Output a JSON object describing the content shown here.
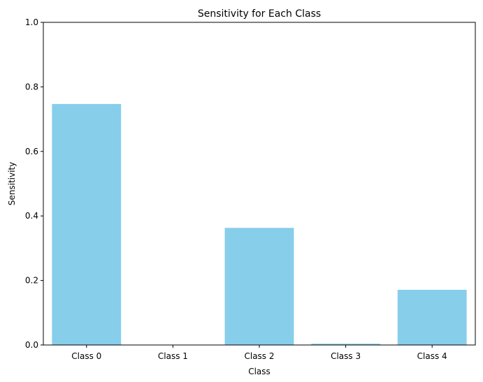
{
  "chart_data": {
    "type": "bar",
    "title": "Sensitivity for Each Class",
    "xlabel": "Class",
    "ylabel": "Sensitivity",
    "categories": [
      "Class 0",
      "Class 1",
      "Class 2",
      "Class 3",
      "Class 4"
    ],
    "values": [
      0.747,
      0.0,
      0.363,
      0.004,
      0.171
    ],
    "ylim": [
      0,
      1.0
    ],
    "yticks": [
      "0.0",
      "0.2",
      "0.4",
      "0.6",
      "0.8",
      "1.0"
    ],
    "grid": false,
    "colors": {
      "bar": "#87ceeb",
      "axis": "#000000"
    }
  }
}
